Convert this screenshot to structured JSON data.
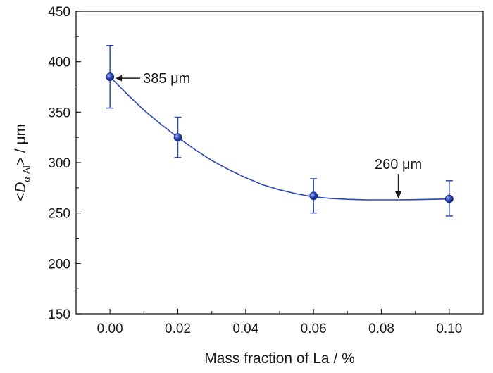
{
  "chart_data": {
    "type": "scatter",
    "title": "",
    "xlabel": "Mass fraction of La / %",
    "ylabel": {
      "prefix": "<",
      "symbol": "D",
      "subscript_greek": "α",
      "subscript_text": "-Al",
      "suffix": "> / μm"
    },
    "xlim": [
      -0.01,
      0.11
    ],
    "ylim": [
      150,
      450
    ],
    "x_ticks": [
      "0.00",
      "0.02",
      "0.04",
      "0.06",
      "0.08",
      "0.10"
    ],
    "y_ticks": [
      "150",
      "200",
      "250",
      "300",
      "350",
      "400",
      "450"
    ],
    "grid": false,
    "legend": "none",
    "series": [
      {
        "points": [
          {
            "x": 0.0,
            "y": 385,
            "err_low": 354,
            "err_high": 416
          },
          {
            "x": 0.02,
            "y": 325,
            "err_low": 305,
            "err_high": 345
          },
          {
            "x": 0.06,
            "y": 267,
            "err_low": 250,
            "err_high": 284
          },
          {
            "x": 0.1,
            "y": 264,
            "err_low": 247,
            "err_high": 282
          }
        ]
      }
    ],
    "fit_curve": [
      [
        0.0,
        385
      ],
      [
        0.005,
        368
      ],
      [
        0.01,
        352
      ],
      [
        0.015,
        338
      ],
      [
        0.02,
        325
      ],
      [
        0.025,
        313
      ],
      [
        0.03,
        302
      ],
      [
        0.035,
        293
      ],
      [
        0.04,
        285
      ],
      [
        0.045,
        278
      ],
      [
        0.05,
        273
      ],
      [
        0.055,
        269
      ],
      [
        0.06,
        266
      ],
      [
        0.065,
        264.5
      ],
      [
        0.07,
        263.6
      ],
      [
        0.075,
        263.1
      ],
      [
        0.08,
        263
      ],
      [
        0.085,
        263
      ],
      [
        0.09,
        263.2
      ],
      [
        0.095,
        263.6
      ],
      [
        0.1,
        264
      ]
    ],
    "annotations": [
      {
        "text": "385 μm",
        "x": 0.0,
        "y": 385
      },
      {
        "text": "260 μm",
        "x": 0.085,
        "y": 263
      }
    ],
    "colors": {
      "series": "#2a46b5",
      "axis": "#1a1a1a"
    }
  }
}
